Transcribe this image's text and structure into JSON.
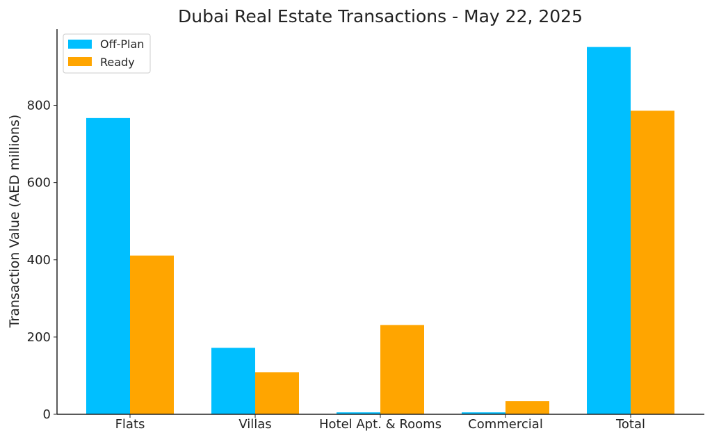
{
  "chart_data": {
    "type": "bar",
    "title": "Dubai Real Estate Transactions - May 22, 2025",
    "xlabel": "",
    "ylabel": "Transaction Value (AED millions)",
    "categories": [
      "Flats",
      "Villas",
      "Hotel Apt. & Rooms",
      "Commercial",
      "Total"
    ],
    "series": [
      {
        "name": "Off-Plan",
        "color": "#00BFFF",
        "values": [
          767,
          172,
          5,
          5,
          951
        ]
      },
      {
        "name": "Ready",
        "color": "#FFA500",
        "values": [
          411,
          109,
          231,
          34,
          786
        ]
      }
    ],
    "ylim": [
      0,
      1000
    ],
    "yticks": [
      0,
      200,
      400,
      600,
      800
    ],
    "grid": false,
    "legend_position": "top-left"
  }
}
